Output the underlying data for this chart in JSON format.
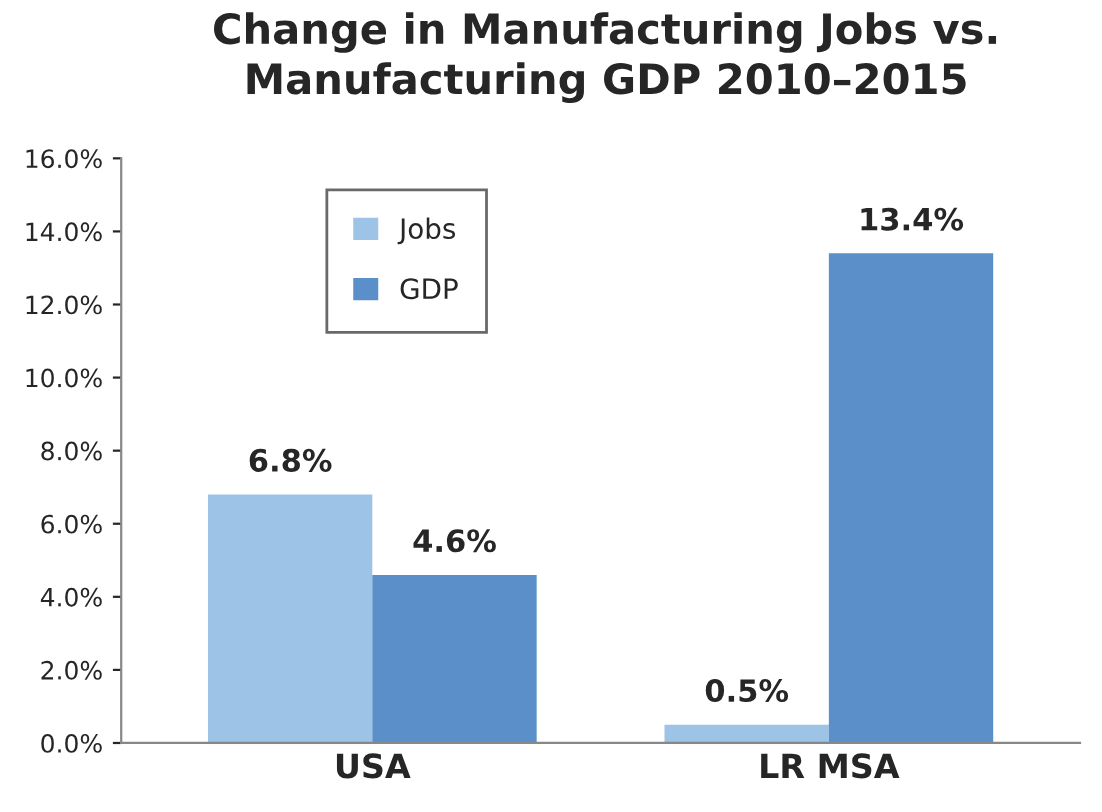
{
  "chart_data": {
    "type": "bar",
    "title": "Change in Manufacturing Jobs vs.\nManufacturing GDP 2010–2015",
    "categories": [
      "USA",
      "LR MSA"
    ],
    "series": [
      {
        "name": "Jobs",
        "color": "#9dc3e6",
        "values": [
          6.8,
          0.5
        ],
        "value_labels": [
          "6.8%",
          "0.5%"
        ]
      },
      {
        "name": "GDP",
        "color": "#5b8fc9",
        "values": [
          4.6,
          13.4
        ],
        "value_labels": [
          "4.6%",
          "13.4%"
        ]
      }
    ],
    "ylim": [
      0,
      16
    ],
    "yticks": [
      {
        "value": 0,
        "label": "0.0%"
      },
      {
        "value": 2,
        "label": "2.0%"
      },
      {
        "value": 4,
        "label": "4.0%"
      },
      {
        "value": 6,
        "label": "6.0%"
      },
      {
        "value": 8,
        "label": "8.0%"
      },
      {
        "value": 10,
        "label": "10.0%"
      },
      {
        "value": 12,
        "label": "12.0%"
      },
      {
        "value": 14,
        "label": "14.0%"
      },
      {
        "value": 16,
        "label": "16.0%"
      }
    ],
    "legend": "top left",
    "grid": false
  }
}
